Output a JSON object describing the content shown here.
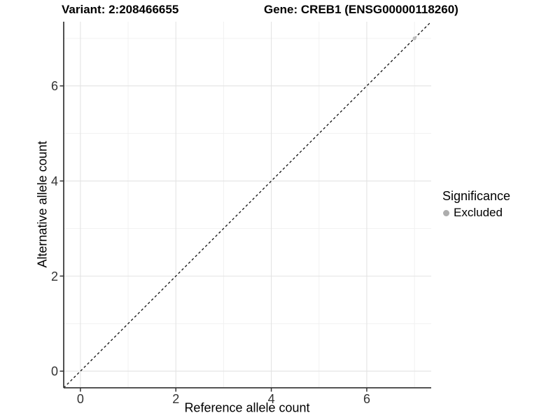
{
  "titles": {
    "variant": "Variant: 2:208466655",
    "gene": "Gene: CREB1 (ENSG00000118260)"
  },
  "axes": {
    "x": {
      "label": "Reference allele count",
      "ticks": [
        0,
        2,
        4,
        6
      ],
      "minor_ticks": [
        1,
        3,
        5,
        7
      ],
      "range": [
        -0.35,
        7.35
      ]
    },
    "y": {
      "label": "Alternative allele count",
      "ticks": [
        0,
        2,
        4,
        6
      ],
      "minor_ticks": [
        1,
        3,
        5,
        7
      ],
      "range": [
        -0.35,
        7.35
      ]
    }
  },
  "legend": {
    "title": "Significance",
    "items": [
      {
        "label": "Excluded",
        "color": "#adadad"
      }
    ]
  },
  "chart_data": {
    "type": "scatter",
    "title": "Variant: 2:208466655   Gene: CREB1 (ENSG00000118260)",
    "xlabel": "Reference allele count",
    "ylabel": "Alternative allele count",
    "xlim": [
      -0.35,
      7.35
    ],
    "ylim": [
      -0.35,
      7.35
    ],
    "x_ticks": [
      0,
      2,
      4,
      6
    ],
    "y_ticks": [
      0,
      2,
      4,
      6
    ],
    "x_minor_ticks": [
      1,
      3,
      5,
      7
    ],
    "y_minor_ticks": [
      1,
      3,
      5,
      7
    ],
    "grid": true,
    "legend_position": "right",
    "series": [
      {
        "name": "Excluded",
        "color": "#bdbdbd",
        "points": [
          {
            "x": 7,
            "y": 7
          }
        ]
      }
    ],
    "reference_line": {
      "kind": "identity",
      "slope": 1,
      "intercept": 0,
      "style": "dashed",
      "color": "#111111"
    }
  },
  "colors": {
    "background": "#ffffff",
    "grid_major": "#e3e3e3",
    "grid_minor": "#f0f0f0",
    "axis_line": "#3c3c3c",
    "tick_mark": "#333333",
    "tick_label": "#333333",
    "point": "#bdbdbd"
  }
}
